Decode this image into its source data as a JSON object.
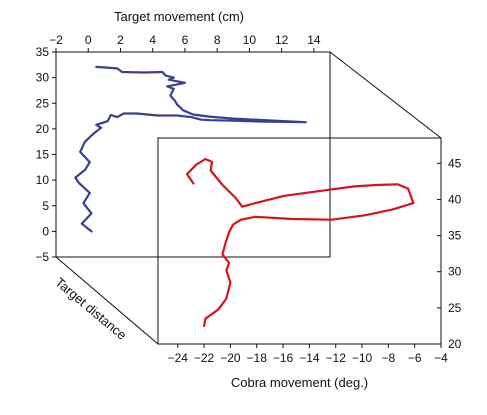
{
  "chart_data": [
    {
      "type": "line",
      "xlabel": "Target movement (cm)",
      "ylabel": "Target distance",
      "xlim": [
        -2,
        15
      ],
      "ylim": [
        -5,
        35
      ],
      "xticks": [
        "−2",
        "0",
        "2",
        "4",
        "6",
        "8",
        "10",
        "12",
        "14"
      ],
      "yticks": [
        "−5",
        "0",
        "5",
        "10",
        "15",
        "20",
        "25",
        "30",
        "35"
      ],
      "series": [
        {
          "color": "#3a3f8f",
          "x": [
            0.2,
            -0.4,
            0.2,
            -0.3,
            0.1,
            -0.6,
            -0.8,
            -0.2,
            0.1,
            -0.5,
            -0.2,
            0.3,
            0.8,
            0.5,
            1.2,
            1.4,
            1.8,
            2.2,
            3.0,
            4.3,
            5.5,
            6.4,
            7.0,
            7.6,
            9.0,
            11.0,
            13.5,
            11.0,
            9.0,
            7.5,
            6.5,
            5.9,
            5.5,
            5.4,
            5.1,
            5.3,
            4.9,
            5.4,
            6.0,
            5.0,
            5.3,
            4.8,
            4.6,
            3.5,
            2.1,
            1.8,
            0.5
          ],
          "y": [
            0,
            1.5,
            3.5,
            5.5,
            7.5,
            9.5,
            10.5,
            12,
            13.5,
            15.5,
            17.5,
            19,
            20.2,
            20.8,
            21.5,
            22.7,
            22.3,
            23,
            23,
            22.6,
            22.6,
            22.3,
            21.8,
            21.7,
            21.6,
            21.4,
            21.3,
            21.7,
            22.0,
            22.4,
            22.8,
            23.6,
            24.8,
            25.4,
            26.5,
            27.8,
            28.3,
            28.6,
            29.0,
            29.6,
            30.0,
            30.4,
            31.1,
            31.0,
            31.1,
            31.8,
            32.1
          ]
        }
      ]
    },
    {
      "type": "line",
      "xlabel": "Cobra movement (deg.)",
      "ylabel": "",
      "xlim": [
        -25.5,
        -4
      ],
      "ylim": [
        20,
        48.5
      ],
      "xticks": [
        "−24",
        "−22",
        "−20",
        "−18",
        "−16",
        "−14",
        "−12",
        "−10",
        "−8",
        "−6",
        "−4"
      ],
      "yticks": [
        "20",
        "25",
        "30",
        "35",
        "40",
        "45"
      ],
      "series": [
        {
          "color": "#d9131e",
          "x": [
            -22.0,
            -21.9,
            -20.9,
            -20.3,
            -20.0,
            -20.3,
            -20.1,
            -20.6,
            -20.4,
            -20.1,
            -19.8,
            -19.2,
            -18.1,
            -15.3,
            -12.3,
            -9.8,
            -7.7,
            -6.1,
            -6.5,
            -7.3,
            -8.9,
            -10.6,
            -13.1,
            -15.9,
            -18.1,
            -19.1,
            -19.6,
            -20.6,
            -21.5,
            -21.4,
            -21.9,
            -22.6,
            -23.3,
            -22.8
          ],
          "y": [
            22.5,
            23.5,
            24.8,
            26.3,
            28.5,
            30.2,
            31.2,
            32.4,
            33.8,
            35.5,
            36.5,
            37.2,
            37.6,
            37.3,
            37.2,
            37.8,
            38.6,
            39.5,
            41.5,
            42.1,
            42.0,
            41.8,
            41.2,
            40.5,
            39.5,
            39.0,
            40.2,
            42.0,
            44.0,
            45.2,
            45.6,
            44.8,
            43.5,
            42.2
          ]
        }
      ]
    }
  ]
}
